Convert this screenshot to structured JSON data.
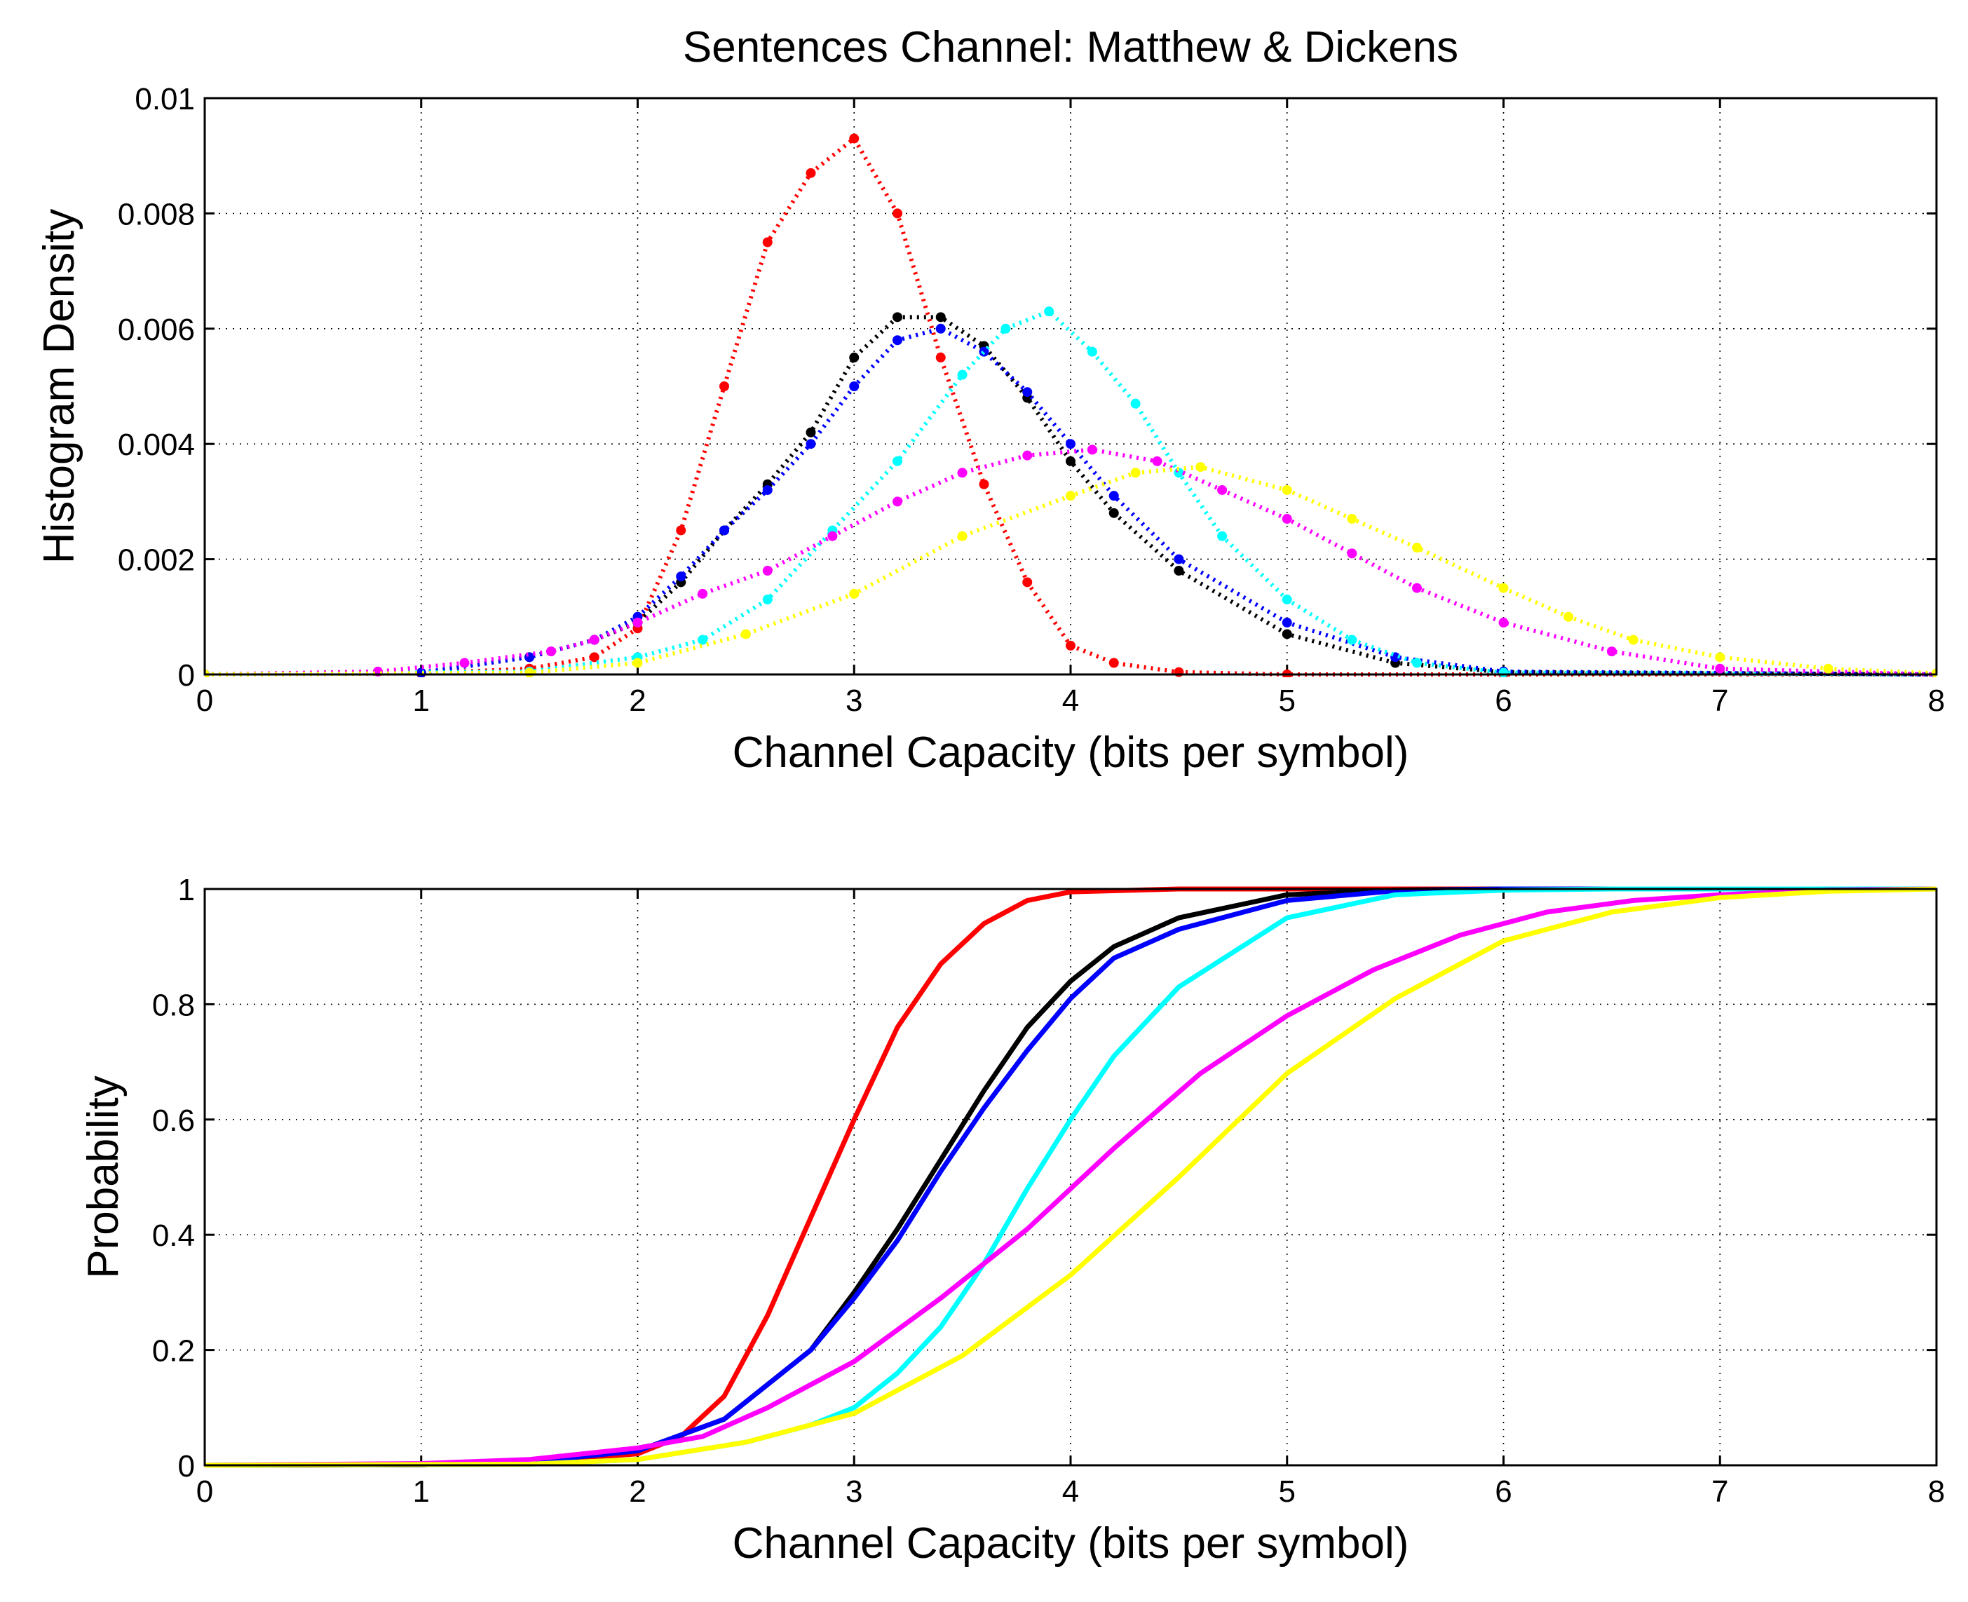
{
  "chart_data": [
    {
      "type": "scatter",
      "title": "Sentences Channel: Matthew & Dickens",
      "xlabel": "Channel Capacity (bits per symbol)",
      "ylabel": "Histogram Density",
      "xlim": [
        0,
        8
      ],
      "ylim": [
        0,
        0.01
      ],
      "xticks": [
        0,
        1,
        2,
        3,
        4,
        5,
        6,
        7,
        8
      ],
      "xtick_labels": [
        "0",
        "1",
        "2",
        "3",
        "4",
        "5",
        "6",
        "7",
        "8"
      ],
      "yticks": [
        0,
        0.002,
        0.004,
        0.006,
        0.008,
        0.01
      ],
      "ytick_labels": [
        "0",
        "0.002",
        "0.004",
        "0.006",
        "0.008",
        "0.01"
      ],
      "grid": true,
      "series": [
        {
          "name": "red",
          "color": "#ff0000",
          "x": [
            0,
            1.0,
            1.5,
            1.8,
            2.0,
            2.2,
            2.4,
            2.6,
            2.8,
            3.0,
            3.2,
            3.4,
            3.6,
            3.8,
            4.0,
            4.2,
            4.5,
            5.0,
            6.0,
            8.0
          ],
          "y": [
            0,
            2e-05,
            0.0001,
            0.0003,
            0.0008,
            0.0025,
            0.005,
            0.0075,
            0.0087,
            0.0093,
            0.008,
            0.0055,
            0.0033,
            0.0016,
            0.0005,
            0.0002,
            4e-05,
            0,
            0,
            0
          ]
        },
        {
          "name": "black",
          "color": "#000000",
          "x": [
            0,
            1.0,
            1.5,
            1.8,
            2.0,
            2.2,
            2.4,
            2.6,
            2.8,
            3.0,
            3.2,
            3.4,
            3.6,
            3.8,
            4.0,
            4.2,
            4.5,
            5.0,
            5.5,
            6.0,
            8.0
          ],
          "y": [
            0,
            3e-05,
            0.0003,
            0.0006,
            0.0009,
            0.0016,
            0.0025,
            0.0033,
            0.0042,
            0.0055,
            0.0062,
            0.0062,
            0.0057,
            0.0048,
            0.0037,
            0.0028,
            0.0018,
            0.0007,
            0.0002,
            4e-05,
            0
          ]
        },
        {
          "name": "blue",
          "color": "#0000ff",
          "x": [
            0,
            1.0,
            1.5,
            1.8,
            2.0,
            2.2,
            2.4,
            2.6,
            2.8,
            3.0,
            3.2,
            3.4,
            3.6,
            3.8,
            4.0,
            4.2,
            4.5,
            5.0,
            5.5,
            6.0,
            8.0
          ],
          "y": [
            0,
            3e-05,
            0.0003,
            0.0006,
            0.001,
            0.0017,
            0.0025,
            0.0032,
            0.004,
            0.005,
            0.0058,
            0.006,
            0.0056,
            0.0049,
            0.004,
            0.0031,
            0.002,
            0.0009,
            0.0003,
            5e-05,
            0
          ]
        },
        {
          "name": "cyan",
          "color": "#00ffff",
          "x": [
            0,
            1.5,
            2.0,
            2.3,
            2.6,
            2.9,
            3.2,
            3.5,
            3.7,
            3.9,
            4.1,
            4.3,
            4.5,
            4.7,
            5.0,
            5.3,
            5.6,
            6.0,
            8.0
          ],
          "y": [
            0,
            5e-05,
            0.0003,
            0.0006,
            0.0013,
            0.0025,
            0.0037,
            0.0052,
            0.006,
            0.0063,
            0.0056,
            0.0047,
            0.0035,
            0.0024,
            0.0013,
            0.0006,
            0.0002,
            3e-05,
            0
          ]
        },
        {
          "name": "magenta",
          "color": "#ff00ff",
          "x": [
            0,
            0.8,
            1.2,
            1.6,
            1.8,
            2.0,
            2.3,
            2.6,
            2.9,
            3.2,
            3.5,
            3.8,
            4.1,
            4.4,
            4.7,
            5.0,
            5.3,
            5.6,
            6.0,
            6.5,
            7.0,
            8.0
          ],
          "y": [
            0,
            5e-05,
            0.0002,
            0.0004,
            0.0006,
            0.0009,
            0.0014,
            0.0018,
            0.0024,
            0.003,
            0.0035,
            0.0038,
            0.0039,
            0.0037,
            0.0032,
            0.0027,
            0.0021,
            0.0015,
            0.0009,
            0.0004,
            0.0001,
            0
          ]
        },
        {
          "name": "yellow",
          "color": "#ffff00",
          "x": [
            0,
            1.5,
            2.0,
            2.5,
            3.0,
            3.5,
            4.0,
            4.3,
            4.6,
            5.0,
            5.3,
            5.6,
            6.0,
            6.3,
            6.6,
            7.0,
            7.5,
            8.0
          ],
          "y": [
            0,
            3e-05,
            0.0002,
            0.0007,
            0.0014,
            0.0024,
            0.0031,
            0.0035,
            0.0036,
            0.0032,
            0.0027,
            0.0022,
            0.0015,
            0.001,
            0.0006,
            0.0003,
            0.0001,
            2e-05
          ]
        }
      ]
    },
    {
      "type": "line",
      "title": "",
      "xlabel": "Channel Capacity (bits per symbol)",
      "ylabel": "Probability",
      "xlim": [
        0,
        8
      ],
      "ylim": [
        0,
        1
      ],
      "xticks": [
        0,
        1,
        2,
        3,
        4,
        5,
        6,
        7,
        8
      ],
      "xtick_labels": [
        "0",
        "1",
        "2",
        "3",
        "4",
        "5",
        "6",
        "7",
        "8"
      ],
      "yticks": [
        0,
        0.2,
        0.4,
        0.6,
        0.8,
        1
      ],
      "ytick_labels": [
        "0",
        "0.2",
        "0.4",
        "0.6",
        "0.8",
        "1"
      ],
      "grid": true,
      "series": [
        {
          "name": "red",
          "color": "#ff0000",
          "x": [
            0,
            1.0,
            1.5,
            2.0,
            2.2,
            2.4,
            2.6,
            2.8,
            3.0,
            3.2,
            3.4,
            3.6,
            3.8,
            4.0,
            4.5,
            5.0,
            8.0
          ],
          "y": [
            0,
            0.001,
            0.005,
            0.02,
            0.05,
            0.12,
            0.26,
            0.43,
            0.6,
            0.76,
            0.87,
            0.94,
            0.98,
            0.995,
            1,
            1,
            1
          ]
        },
        {
          "name": "black",
          "color": "#000000",
          "x": [
            0,
            1.0,
            1.5,
            2.0,
            2.4,
            2.8,
            3.0,
            3.2,
            3.4,
            3.6,
            3.8,
            4.0,
            4.2,
            4.5,
            5.0,
            5.5,
            6.0,
            8.0
          ],
          "y": [
            0,
            0.001,
            0.006,
            0.025,
            0.08,
            0.2,
            0.3,
            0.41,
            0.53,
            0.65,
            0.76,
            0.84,
            0.9,
            0.95,
            0.99,
            0.998,
            1,
            1
          ]
        },
        {
          "name": "blue",
          "color": "#0000ff",
          "x": [
            0,
            1.0,
            1.5,
            2.0,
            2.4,
            2.8,
            3.0,
            3.2,
            3.4,
            3.6,
            3.8,
            4.0,
            4.2,
            4.5,
            5.0,
            5.5,
            6.0,
            8.0
          ],
          "y": [
            0,
            0.001,
            0.006,
            0.025,
            0.08,
            0.2,
            0.29,
            0.39,
            0.51,
            0.62,
            0.72,
            0.81,
            0.88,
            0.93,
            0.98,
            0.997,
            1,
            1
          ]
        },
        {
          "name": "cyan",
          "color": "#00ffff",
          "x": [
            0,
            1.5,
            2.0,
            2.5,
            2.8,
            3.0,
            3.2,
            3.4,
            3.6,
            3.8,
            4.0,
            4.2,
            4.5,
            5.0,
            5.5,
            6.0,
            6.5,
            8.0
          ],
          "y": [
            0,
            0.002,
            0.01,
            0.04,
            0.07,
            0.1,
            0.16,
            0.24,
            0.35,
            0.48,
            0.6,
            0.71,
            0.83,
            0.95,
            0.99,
            0.998,
            1,
            1
          ]
        },
        {
          "name": "magenta",
          "color": "#ff00ff",
          "x": [
            0,
            1.0,
            1.5,
            2.0,
            2.3,
            2.6,
            3.0,
            3.4,
            3.8,
            4.2,
            4.6,
            5.0,
            5.4,
            5.8,
            6.2,
            6.6,
            7.0,
            7.5,
            8.0
          ],
          "y": [
            0,
            0.003,
            0.01,
            0.03,
            0.05,
            0.1,
            0.18,
            0.29,
            0.41,
            0.55,
            0.68,
            0.78,
            0.86,
            0.92,
            0.96,
            0.98,
            0.99,
            0.998,
            1
          ]
        },
        {
          "name": "yellow",
          "color": "#ffff00",
          "x": [
            0,
            1.5,
            2.0,
            2.5,
            3.0,
            3.5,
            4.0,
            4.5,
            5.0,
            5.5,
            6.0,
            6.5,
            7.0,
            7.5,
            8.0
          ],
          "y": [
            0,
            0.002,
            0.01,
            0.04,
            0.09,
            0.19,
            0.33,
            0.5,
            0.68,
            0.81,
            0.91,
            0.96,
            0.985,
            0.996,
            1
          ]
        }
      ]
    }
  ]
}
